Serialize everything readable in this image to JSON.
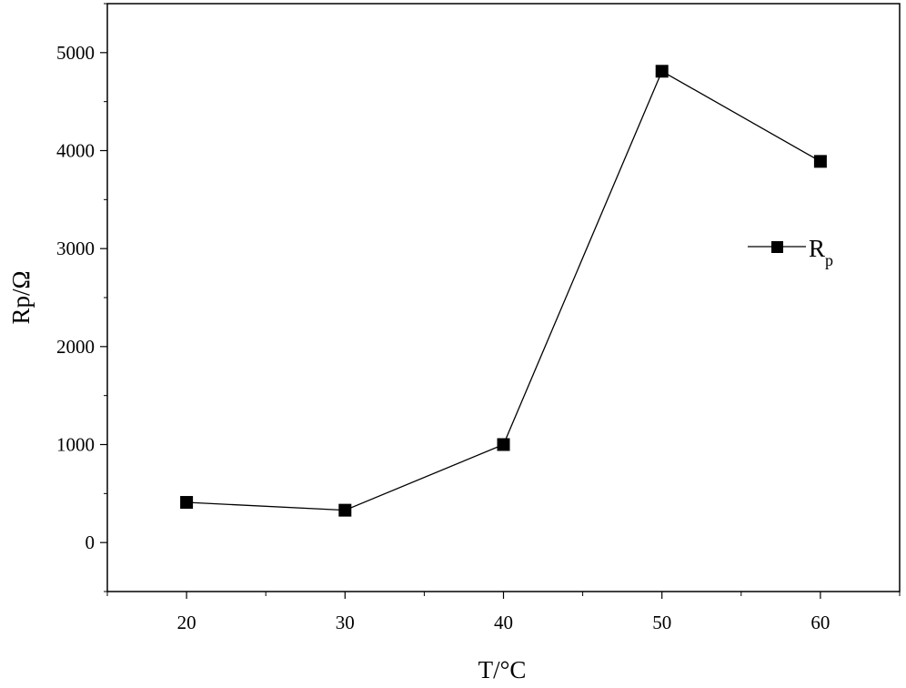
{
  "chart_data": {
    "type": "line",
    "title": "",
    "xlabel": "T/°C",
    "ylabel": "Rp/Ω",
    "xlim": [
      15,
      65
    ],
    "ylim": [
      -500,
      5500
    ],
    "x_ticks": [
      "20",
      "30",
      "40",
      "50",
      "60"
    ],
    "y_ticks": [
      "0",
      "1000",
      "2000",
      "3000",
      "4000",
      "5000"
    ],
    "grid": false,
    "legend_position": "right",
    "series": [
      {
        "name": "R",
        "name_subscript": "p",
        "marker": "square",
        "color": "#000000",
        "x": [
          20,
          30,
          40,
          50,
          60
        ],
        "y": [
          410,
          330,
          1000,
          4810,
          3890
        ]
      }
    ]
  }
}
